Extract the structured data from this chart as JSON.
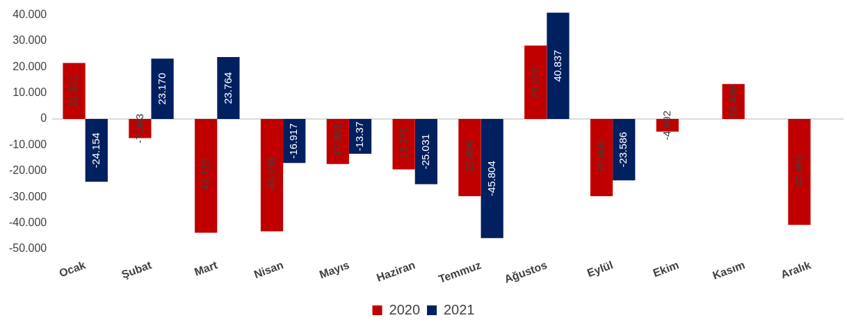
{
  "chart_data": {
    "type": "bar",
    "categories": [
      "Ocak",
      "Şubat",
      "Mart",
      "Nisan",
      "Mayıs",
      "Haziran",
      "Temmuz",
      "Ağustos",
      "Eylül",
      "Ekim",
      "Kasım",
      "Aralık"
    ],
    "series": [
      {
        "name": "2020",
        "color": "#c00000",
        "values": [
          21.501,
          -7.363,
          -43.719,
          -43.198,
          -17.301,
          -19.37,
          -29.696,
          28.22,
          -29.665,
          -4.892,
          13.43,
          -40.691
        ],
        "value_labels": [
          "21.501",
          "-7.363",
          "-43.719",
          "-43.198",
          "-17.301",
          "-19.370",
          "-29.696",
          "28.220",
          "-29.665",
          "-4.892",
          "13.430",
          "-40.691"
        ]
      },
      {
        "name": "2021",
        "color": "#002060",
        "values": [
          -24.154,
          23.17,
          23.764,
          -16.917,
          -13.37,
          -25.031,
          -45.804,
          40.837,
          -23.586,
          null,
          null,
          null
        ],
        "value_labels": [
          "-24.154",
          "23.170",
          "23.764",
          "-16.917",
          "-13.37",
          "-25.031",
          "-45.804",
          "40.837",
          "-23.586",
          null,
          null,
          null
        ]
      }
    ],
    "ylim": [
      -50,
      41
    ],
    "yticks": [
      {
        "value": -50,
        "label": "-50.000"
      },
      {
        "value": -40,
        "label": "-40.000"
      },
      {
        "value": -30,
        "label": "-30.000"
      },
      {
        "value": -20,
        "label": "-20.000"
      },
      {
        "value": -10,
        "label": "-10.000"
      },
      0,
      {
        "value": 10,
        "label": "10.000"
      },
      {
        "value": 20,
        "label": "20.000"
      },
      {
        "value": 30,
        "label": "30.000"
      },
      {
        "value": 40,
        "label": "40.000"
      }
    ],
    "grid": false,
    "ref_lines": [
      {
        "axis": "y",
        "value": 0,
        "color": "#d9d9d9"
      }
    ],
    "legend": "bottom"
  }
}
